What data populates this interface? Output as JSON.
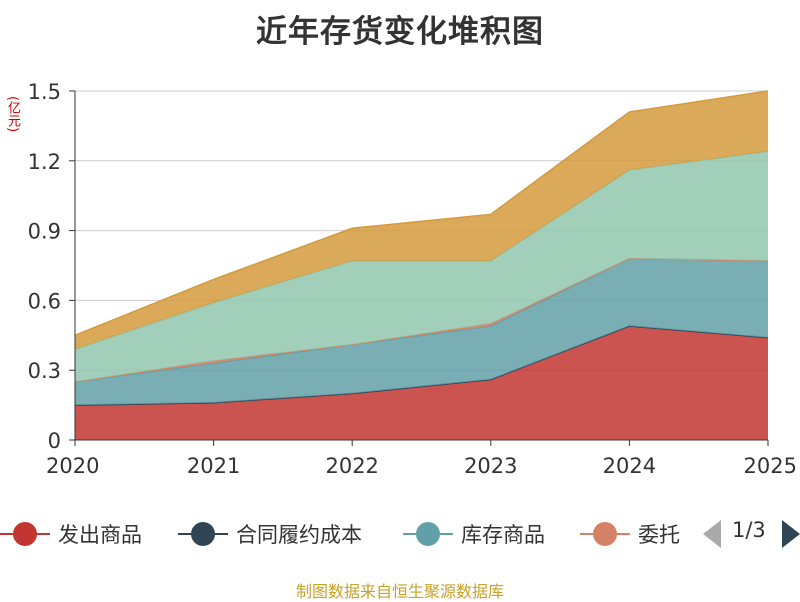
{
  "chart_data": {
    "type": "area",
    "stacked": true,
    "title": "近年存货变化堆积图",
    "ylabel": "(亿元)",
    "xlabel": "",
    "ylim": [
      0,
      1.5
    ],
    "y_ticks": [
      "0",
      "0.3",
      "0.6",
      "0.9",
      "1.2",
      "1.5"
    ],
    "categories": [
      "2020",
      "2021",
      "2022",
      "2023",
      "2024",
      "2025"
    ],
    "series": [
      {
        "name": "发出商品",
        "color": "#c23531",
        "values": [
          0.15,
          0.16,
          0.2,
          0.26,
          0.49,
          0.44
        ]
      },
      {
        "name": "合同履约成本",
        "color": "#2f4554",
        "values": [
          0.0,
          0.0,
          0.0,
          0.0,
          0.0,
          0.0
        ]
      },
      {
        "name": "库存商品",
        "color": "#61a0a8",
        "values": [
          0.1,
          0.17,
          0.21,
          0.23,
          0.29,
          0.33
        ]
      },
      {
        "name": "委托加工物资",
        "color": "#d48265",
        "values": [
          0.0,
          0.01,
          0.0,
          0.01,
          0.0,
          0.0
        ]
      },
      {
        "name": "",
        "color": "#91c7ae",
        "values": [
          0.14,
          0.25,
          0.36,
          0.27,
          0.38,
          0.47
        ]
      },
      {
        "name": "",
        "color": "#d49a3c",
        "values": [
          0.06,
          0.1,
          0.14,
          0.2,
          0.25,
          0.26
        ]
      }
    ],
    "grid": true,
    "legend_position": "bottom"
  },
  "legend": {
    "items": [
      {
        "label": "发出商品",
        "color": "#c23531"
      },
      {
        "label": "合同履约成本",
        "color": "#2f4554"
      },
      {
        "label": "库存商品",
        "color": "#61a0a8"
      },
      {
        "label": "委托",
        "color": "#d48265"
      }
    ],
    "page": "1/3"
  },
  "source": "制图数据来自恒生聚源数据库"
}
